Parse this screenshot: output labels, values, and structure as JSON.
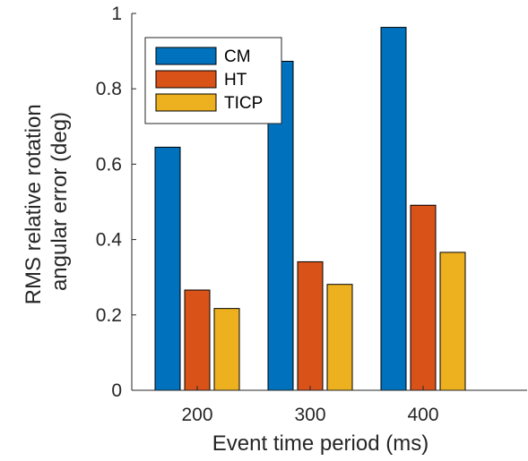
{
  "chart_data": {
    "type": "bar",
    "categories": [
      "200",
      "300",
      "400"
    ],
    "series": [
      {
        "name": "CM",
        "values": [
          0.645,
          0.873,
          0.963
        ],
        "color": "#0072BD"
      },
      {
        "name": "HT",
        "values": [
          0.266,
          0.341,
          0.491
        ],
        "color": "#D95319"
      },
      {
        "name": "TICP",
        "values": [
          0.217,
          0.281,
          0.366
        ],
        "color": "#EDB120"
      }
    ],
    "title": "",
    "xlabel": "Event time period (ms)",
    "ylabel_lines": [
      "RMS relative rotation",
      "angular error (deg)"
    ],
    "ylim": [
      0,
      1
    ],
    "yticks": [
      0,
      0.2,
      0.4,
      0.6,
      0.8,
      1
    ],
    "ytick_labels": [
      "0",
      "0.2",
      "0.4",
      "0.6",
      "0.8",
      "1"
    ],
    "grid": false,
    "legend_position": "top-left"
  }
}
